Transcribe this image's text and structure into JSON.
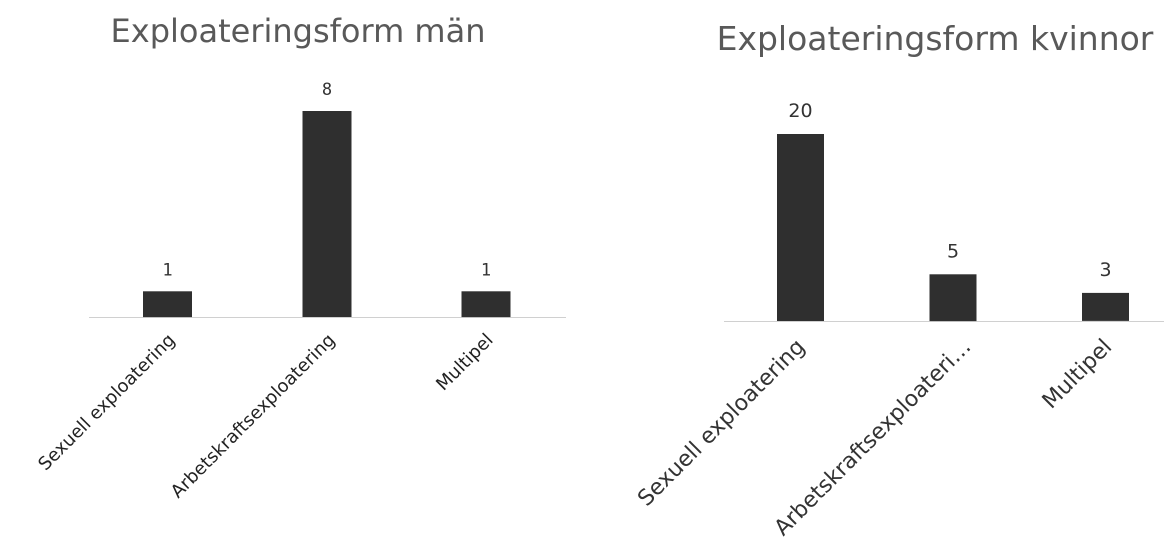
{
  "chart_data": [
    {
      "type": "bar",
      "title": "Exploateringsform män",
      "categories": [
        "Sexuell exploatering",
        "Arbetskraftsexploatering",
        "Multipel"
      ],
      "values": [
        1,
        8,
        1
      ],
      "xlabel": "",
      "ylabel": "",
      "grid": false,
      "colors": {
        "bar": "#2f2f2f",
        "axis": "#d0d0d0",
        "title": "#595959"
      }
    },
    {
      "type": "bar",
      "title": "Exploateringsform kvinnor",
      "categories": [
        "Sexuell exploatering",
        "Arbetskraftsexploateri…",
        "Multipel"
      ],
      "values": [
        20,
        5,
        3
      ],
      "xlabel": "",
      "ylabel": "",
      "grid": false,
      "colors": {
        "bar": "#2f2f2f",
        "axis": "#d0d0d0",
        "title": "#595959"
      }
    }
  ]
}
